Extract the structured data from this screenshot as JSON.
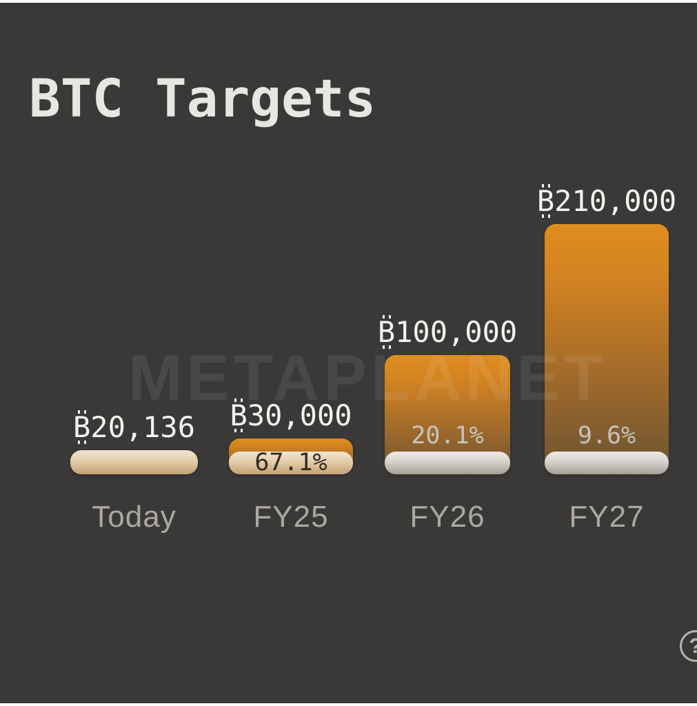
{
  "page": {
    "background_color": "#3A3938",
    "edge_strip_color": "#FFFFFF",
    "title": "BTC Targets",
    "title_color": "#E7E6E3"
  },
  "chart_data": {
    "type": "bar",
    "title": "BTC Targets",
    "categories": [
      "Today",
      "FY25",
      "FY26",
      "FY27"
    ],
    "values": [
      20136,
      30000,
      100000,
      210000
    ],
    "value_labels": [
      "₿20,136",
      "₿30,000",
      "₿100,000",
      "₿210,000"
    ],
    "percent_of_target": [
      "",
      "67.1%",
      "20.1%",
      "9.6%"
    ],
    "ylim": [
      0,
      210000
    ],
    "xlabel": "",
    "ylabel": "",
    "grid": false,
    "legend_position": "none",
    "bar_gradient_top": "#DE8E1E",
    "bar_gradient_bottom": "#6B5433",
    "today_segment_colors": [
      "#F0E4CE",
      "#C2A072"
    ],
    "future_segment_colors": [
      "#EEEBE7",
      "#A49D94"
    ],
    "value_label_color": "#F4F3F0",
    "percent_dark_color": "#332B1E",
    "percent_light_color": "#C9C4BC",
    "axis_label_color": "#ABA8A3"
  },
  "bars": [
    {
      "category": "Today",
      "amount": "20,136",
      "percent": ""
    },
    {
      "category": "FY25",
      "amount": "30,000",
      "percent": "67.1%"
    },
    {
      "category": "FY26",
      "amount": "100,000",
      "percent": "20.1%"
    },
    {
      "category": "FY27",
      "amount": "210,000",
      "percent": "9.6%"
    }
  ],
  "symbols": {
    "btc_unicode": "₿",
    "btc_base": "B",
    "help": "?"
  },
  "watermark": {
    "text": "METAPLANET"
  }
}
